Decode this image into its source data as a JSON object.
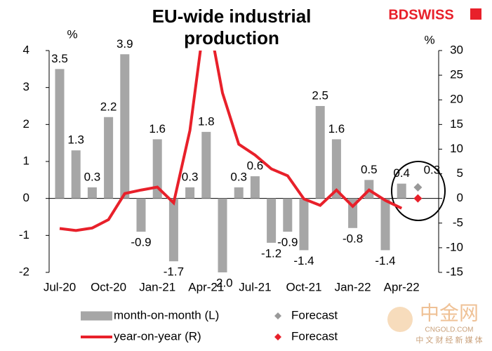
{
  "chart_data": {
    "type": "bar",
    "title": "EU-wide industrial production",
    "logo": "BDSWISS",
    "watermark": "中金网",
    "watermark_url": "CNGOLD.COM",
    "watermark_sub": "中 文 财 经 新 媒 体",
    "ylabel": "%",
    "y2label": "%",
    "categories": [
      "Jul-20",
      null,
      null,
      "Oct-20",
      null,
      null,
      "Jan-21",
      null,
      null,
      "Apr-21",
      null,
      null,
      "Jul-21",
      null,
      null,
      "Oct-21",
      null,
      null,
      "Jan-22",
      null,
      null,
      "Apr-22",
      null
    ],
    "ylim": [
      -2,
      4
    ],
    "yticks": [
      -2,
      -1,
      0,
      1,
      2,
      3,
      4
    ],
    "y2lim": [
      -15,
      30
    ],
    "y2ticks": [
      -15,
      -10,
      -5,
      0,
      5,
      10,
      15,
      20,
      25,
      30
    ],
    "series": [
      {
        "name": "month-on-month (L)",
        "type": "bar",
        "color": "#a6a6a6",
        "values": [
          3.5,
          1.3,
          0.3,
          2.2,
          3.9,
          -0.9,
          1.6,
          -1.7,
          0.3,
          1.8,
          -2.0,
          0.3,
          0.6,
          -1.2,
          -0.9,
          -1.4,
          2.5,
          1.6,
          -0.8,
          0.5,
          -1.4,
          0.4,
          null
        ],
        "value_labels": [
          "3.5",
          "1.3",
          "0.3",
          "2.2",
          "3.9",
          "-0.9",
          "1.6",
          "-1.7",
          "0.3",
          "1.8",
          "-2.0",
          "0.3",
          "0.6",
          "-1.2",
          "-0.9",
          "-1.4",
          "2.5",
          "1.6",
          "-0.8",
          "0.5",
          "-1.4",
          "0.4",
          null
        ]
      },
      {
        "name": "Forecast",
        "type": "scatter",
        "color": "#999999",
        "values": [
          null,
          null,
          null,
          null,
          null,
          null,
          null,
          null,
          null,
          null,
          null,
          null,
          null,
          null,
          null,
          null,
          null,
          null,
          null,
          null,
          null,
          null,
          0.3
        ],
        "value_labels": [
          null,
          null,
          null,
          null,
          null,
          null,
          null,
          null,
          null,
          null,
          null,
          null,
          null,
          null,
          null,
          null,
          null,
          null,
          null,
          null,
          null,
          null,
          "0.3"
        ]
      },
      {
        "name": "year-on-year (R)",
        "type": "line",
        "axis": "y2",
        "color": "#e8202a",
        "values": [
          -6.1,
          -6.5,
          -6.0,
          -4.3,
          1.0,
          1.7,
          2.3,
          -0.9,
          13.8,
          39.0,
          21.4,
          11.0,
          8.8,
          6.0,
          4.6,
          -0.1,
          -1.4,
          1.7,
          -1.6,
          1.7,
          -0.4,
          -2.0,
          null
        ]
      },
      {
        "name": "Forecast",
        "type": "scatter",
        "axis": "y2",
        "color": "#e8202a",
        "values": [
          null,
          null,
          null,
          null,
          null,
          null,
          null,
          null,
          null,
          null,
          null,
          null,
          null,
          null,
          null,
          null,
          null,
          null,
          null,
          null,
          null,
          null,
          0.0
        ]
      }
    ]
  }
}
